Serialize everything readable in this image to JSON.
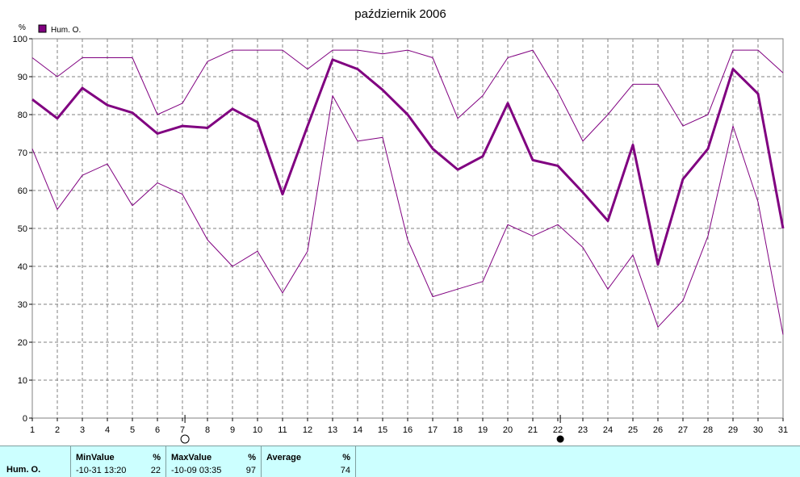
{
  "chart_data": {
    "type": "line",
    "title": "październik 2006",
    "ylabel": "%",
    "ylim": [
      0,
      100
    ],
    "yticks": [
      "0",
      "10",
      "20",
      "30",
      "40",
      "50",
      "60",
      "70",
      "80",
      "90",
      "100"
    ],
    "categories": [
      "1",
      "2",
      "3",
      "4",
      "5",
      "6",
      "7",
      "8",
      "9",
      "10",
      "11",
      "12",
      "13",
      "14",
      "15",
      "16",
      "17",
      "18",
      "19",
      "20",
      "21",
      "22",
      "23",
      "24",
      "25",
      "26",
      "27",
      "28",
      "29",
      "30",
      "31"
    ],
    "legend": "Hum. O.",
    "grid": true,
    "colors": {
      "series": "#800080",
      "grid": "#808080",
      "frame": "#808080"
    },
    "series": [
      {
        "role": "max",
        "values": [
          95,
          90,
          95,
          95,
          95,
          80,
          83,
          94,
          97,
          97,
          97,
          92,
          97,
          97,
          96,
          97,
          95,
          79,
          85,
          95,
          97,
          86,
          73,
          80,
          88,
          88,
          77,
          80,
          97,
          97,
          91
        ]
      },
      {
        "role": "average",
        "values": [
          84,
          79,
          87,
          82.5,
          80.5,
          75,
          77,
          76.5,
          81.5,
          78,
          59,
          77,
          94.5,
          92,
          86.5,
          80,
          71,
          65.5,
          69,
          83,
          68,
          66.5,
          59.5,
          52,
          72,
          40.5,
          63,
          71,
          92,
          85.5,
          50
        ]
      },
      {
        "role": "min",
        "values": [
          71,
          55,
          64,
          67,
          56,
          62,
          59,
          47,
          40,
          44,
          33,
          44,
          85,
          73,
          74,
          47,
          32,
          34,
          36,
          51,
          48,
          51,
          45,
          34,
          43,
          24,
          31,
          48,
          77,
          57,
          22
        ]
      }
    ],
    "moon_phases": [
      {
        "day": 7,
        "phase": "full-moon-icon"
      },
      {
        "day": 22,
        "phase": "new-moon-icon"
      }
    ]
  },
  "stats": {
    "series_label": "Hum. O.",
    "min_header": "MinValue",
    "min_unit": "%",
    "min_time": "-10-31  13:20",
    "min_value": "22",
    "max_header": "MaxValue",
    "max_unit": "%",
    "max_time": "-10-09  03:35",
    "max_value": "97",
    "avg_header": "Average",
    "avg_unit": "%",
    "avg_value": "74"
  }
}
